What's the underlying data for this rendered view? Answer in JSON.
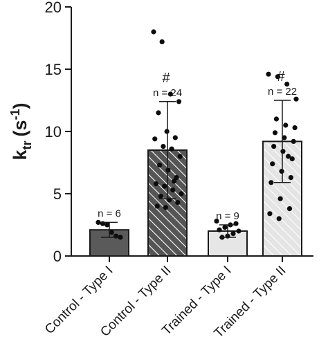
{
  "chart_data": {
    "type": "bar",
    "ylabel": {
      "main": "k",
      "sub": "tr",
      "unit": "(s",
      "exp": "-1",
      "close": ")"
    },
    "ylim": [
      0,
      20
    ],
    "yticks": [
      0,
      5,
      10,
      15,
      20
    ],
    "categories": [
      "Control  - Type I",
      "Control  - Type II",
      "Trained - Type I",
      "Trained - Type II"
    ],
    "values": [
      2.1,
      8.5,
      2.0,
      9.2
    ],
    "error_sd": [
      0.6,
      3.9,
      0.5,
      3.3
    ],
    "n_labels": [
      "n = 6",
      "n = 24",
      "n = 9",
      "n = 22"
    ],
    "significance": [
      "",
      "#",
      "",
      "#"
    ],
    "bar_styles": [
      {
        "fill": "#5a5a5a",
        "hatch": false
      },
      {
        "fill": "#555555",
        "hatch": true,
        "hatch_color": "#ffffff"
      },
      {
        "fill": "#e6e6e6",
        "hatch": false
      },
      {
        "fill": "#ececec",
        "hatch": true,
        "hatch_color": "#ffffff"
      }
    ],
    "points": [
      [
        2.7,
        2.6,
        2.5,
        1.9,
        1.6,
        1.5
      ],
      [
        18.0,
        17.2,
        13.0,
        12.4,
        11.5,
        10.0,
        9.5,
        9.4,
        8.8,
        8.6,
        8.0,
        7.3,
        6.9,
        6.3,
        5.8,
        5.6,
        5.3,
        5.0,
        4.8,
        4.5,
        4.3,
        4.0,
        3.9,
        6.0
      ],
      [
        2.8,
        2.6,
        2.5,
        2.3,
        2.1,
        2.0,
        1.8,
        1.6,
        1.5
      ],
      [
        14.6,
        14.4,
        13.8,
        12.6,
        11.0,
        10.5,
        10.3,
        9.9,
        9.5,
        9.2,
        8.8,
        8.4,
        7.8,
        7.4,
        6.8,
        6.3,
        5.9,
        4.6,
        3.8,
        3.4,
        3.0,
        8.0
      ]
    ]
  }
}
